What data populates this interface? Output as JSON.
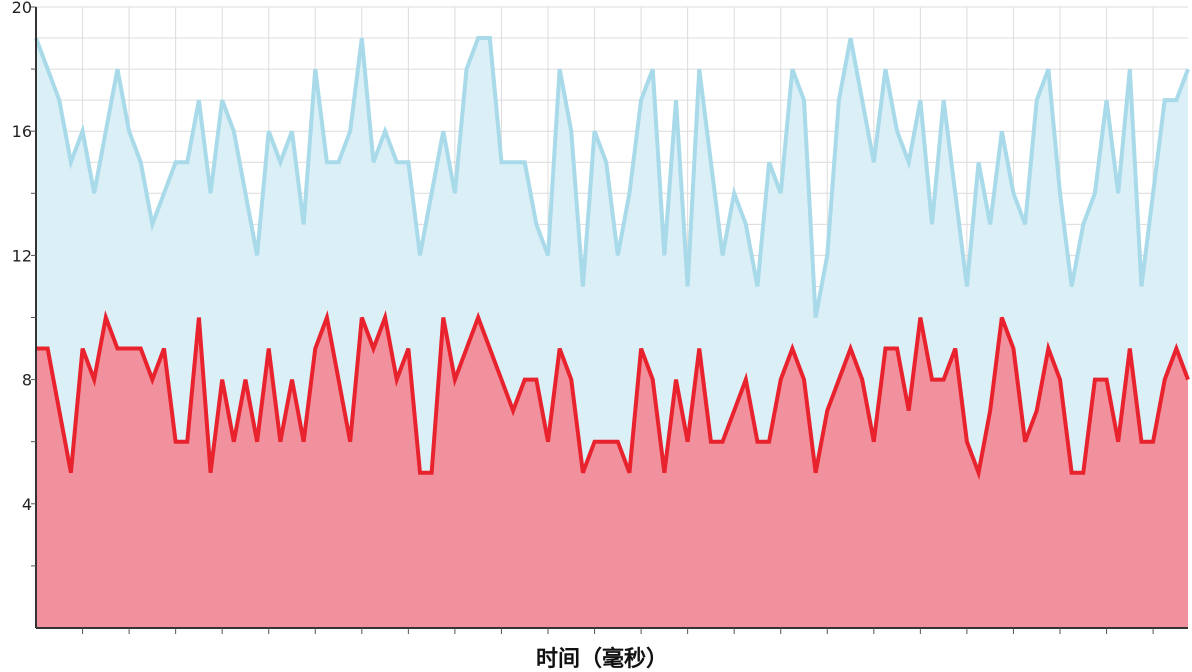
{
  "chart_data": {
    "type": "area",
    "title": "",
    "xlabel": "时间（毫秒）",
    "ylabel": "",
    "ylim": [
      0,
      20
    ],
    "yticks": [
      4,
      8,
      12,
      16,
      20
    ],
    "ytick_labels": [
      "4",
      "8",
      "12",
      "16",
      "20"
    ],
    "x_range": [
      0,
      99
    ],
    "grid": true,
    "legend": "none",
    "series": [
      {
        "color": "#a8dae9",
        "fill": "#dbeff7",
        "values": [
          19,
          18,
          17,
          15,
          16,
          14,
          16,
          18,
          16,
          15,
          13,
          14,
          15,
          15,
          17,
          14,
          17,
          16,
          14,
          12,
          16,
          15,
          16,
          13,
          18,
          15,
          15,
          16,
          19,
          15,
          16,
          15,
          15,
          12,
          14,
          16,
          14,
          18,
          19,
          19,
          15,
          15,
          15,
          13,
          12,
          18,
          16,
          11,
          16,
          15,
          12,
          14,
          17,
          18,
          12,
          17,
          11,
          18,
          15,
          12,
          14,
          13,
          11,
          15,
          14,
          18,
          17,
          10,
          12,
          17,
          19,
          17,
          15,
          18,
          16,
          15,
          17,
          13,
          17,
          14,
          11,
          15,
          13,
          16,
          14,
          13,
          17,
          18,
          14,
          11,
          13,
          14,
          17,
          14,
          18,
          11,
          14,
          17,
          17,
          18
        ]
      },
      {
        "color": "#e8232e",
        "fill": "#f2919e",
        "values": [
          9,
          9,
          7,
          5,
          9,
          8,
          10,
          9,
          9,
          9,
          8,
          9,
          6,
          6,
          10,
          5,
          8,
          6,
          8,
          6,
          9,
          6,
          8,
          6,
          9,
          10,
          8,
          6,
          10,
          9,
          10,
          8,
          9,
          5,
          5,
          10,
          8,
          9,
          10,
          9,
          8,
          7,
          8,
          8,
          6,
          9,
          8,
          5,
          6,
          6,
          6,
          5,
          9,
          8,
          5,
          8,
          6,
          9,
          6,
          6,
          7,
          8,
          6,
          6,
          8,
          9,
          8,
          5,
          7,
          8,
          9,
          8,
          6,
          9,
          9,
          7,
          10,
          8,
          8,
          9,
          6,
          5,
          7,
          10,
          9,
          6,
          7,
          9,
          8,
          5,
          5,
          8,
          8,
          6,
          9,
          6,
          6,
          8,
          9,
          8
        ]
      }
    ]
  }
}
